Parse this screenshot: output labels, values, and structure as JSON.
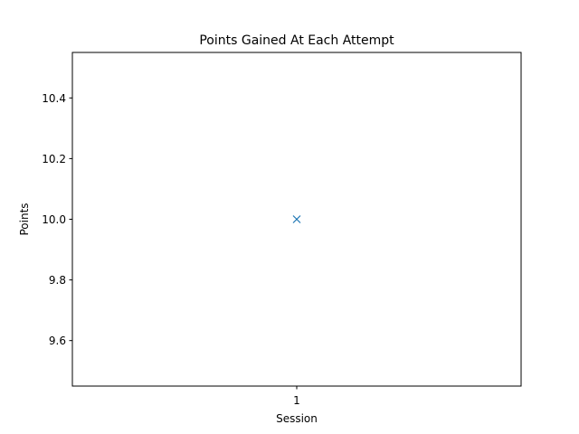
{
  "chart_data": {
    "type": "scatter",
    "title": "Points Gained At Each Attempt",
    "xlabel": "Session",
    "ylabel": "Points",
    "x_ticks": [
      "1"
    ],
    "y_ticks": [
      "9.6",
      "9.8",
      "10.0",
      "10.2",
      "10.4"
    ],
    "ylim": [
      9.45,
      10.55
    ],
    "grid": false,
    "marker": "x",
    "color": "#1f77b4",
    "points": [
      {
        "x": "1",
        "y": 10.0
      }
    ]
  }
}
